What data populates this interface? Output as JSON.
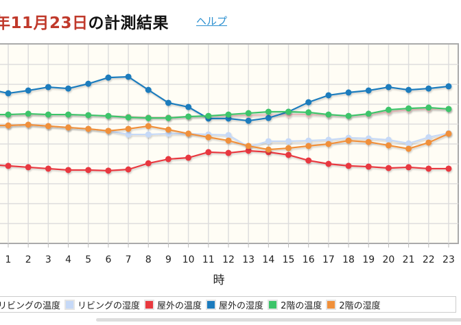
{
  "header": {
    "title_date": "年11月23日",
    "title_rest": "の計測結果",
    "help_link": "ヘルプ"
  },
  "chart_data": {
    "type": "line",
    "xlabel": "時",
    "ylabel": "",
    "x": [
      0,
      1,
      2,
      3,
      4,
      5,
      6,
      7,
      8,
      9,
      10,
      11,
      12,
      13,
      14,
      15,
      16,
      17,
      18,
      19,
      20,
      21,
      22,
      23
    ],
    "x_tick_labels": [
      "1",
      "2",
      "3",
      "4",
      "5",
      "6",
      "7",
      "8",
      "9",
      "10",
      "11",
      "12",
      "13",
      "14",
      "15",
      "16",
      "17",
      "18",
      "19",
      "20",
      "21",
      "22",
      "23"
    ],
    "ylim": [
      0,
      100
    ],
    "grid": true,
    "legend_position": "bottom",
    "series": [
      {
        "name": "リビングの温度",
        "color": "#f4c6c6",
        "values": [
          64.8,
          64.8,
          65.0,
          64.8,
          64.8,
          64.5,
          64.1,
          63.8,
          63.4,
          63.4,
          63.8,
          64.1,
          64.1,
          64.5,
          64.5,
          64.8,
          64.8,
          64.5,
          64.1,
          64.8,
          66.2,
          67.2,
          67.6,
          67.6
        ]
      },
      {
        "name": "リビングの湿度",
        "color": "#c6d9f7",
        "values": [
          59.3,
          59.3,
          59.7,
          59.0,
          58.3,
          57.6,
          56.6,
          54.8,
          54.8,
          55.2,
          55.2,
          54.8,
          54.5,
          48.6,
          51.4,
          51.4,
          51.7,
          52.1,
          53.1,
          52.8,
          52.1,
          50.3,
          53.4,
          55.5
        ]
      },
      {
        "name": "屋外の温度",
        "color": "#e8393f",
        "values": [
          39.7,
          39.0,
          38.3,
          37.6,
          36.9,
          36.9,
          36.6,
          37.2,
          40.3,
          42.4,
          43.1,
          45.9,
          45.5,
          46.6,
          45.9,
          44.5,
          41.7,
          40.0,
          39.0,
          38.6,
          37.9,
          38.3,
          37.6,
          37.6
        ]
      },
      {
        "name": "屋外の湿度",
        "color": "#1b7bbd",
        "values": [
          77.6,
          75.5,
          76.9,
          78.6,
          77.9,
          80.3,
          83.4,
          83.8,
          77.2,
          70.7,
          68.6,
          62.8,
          62.8,
          61.7,
          63.1,
          66.2,
          71.0,
          74.5,
          75.9,
          76.9,
          78.6,
          77.2,
          77.9,
          79.0
        ]
      },
      {
        "name": "2階の温度",
        "color": "#3cc46a",
        "values": [
          64.8,
          64.8,
          65.2,
          64.8,
          64.8,
          64.5,
          64.1,
          63.4,
          63.1,
          63.1,
          63.8,
          64.1,
          64.8,
          65.5,
          66.2,
          66.2,
          65.9,
          64.8,
          64.1,
          65.2,
          67.2,
          67.9,
          68.3,
          67.6
        ]
      },
      {
        "name": "2階の湿度",
        "color": "#f0903a",
        "values": [
          59.3,
          59.3,
          59.7,
          59.0,
          58.3,
          57.6,
          56.6,
          57.6,
          59.0,
          57.2,
          55.2,
          53.4,
          51.7,
          49.0,
          47.2,
          47.9,
          49.0,
          50.0,
          51.7,
          51.0,
          49.3,
          47.6,
          50.7,
          55.2
        ]
      }
    ]
  }
}
